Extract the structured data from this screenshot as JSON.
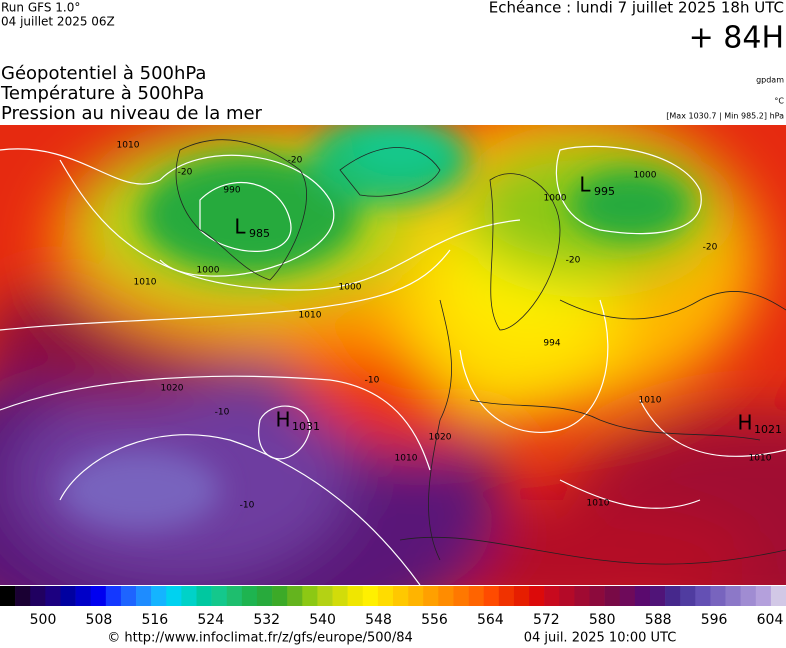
{
  "header": {
    "run": "Run GFS 1.0°",
    "run_date": "04 juillet 2025 06Z",
    "valid": "Echéance : lundi 7 juillet 2025 18h UTC",
    "lead": "+ 84H",
    "titles": [
      "Géopotentiel à 500hPa",
      "Température à 500hPa",
      "Pression au niveau de la mer"
    ],
    "units": [
      "gpdam",
      "°C",
      "[Max 1030.7 | Min 985.2] hPa"
    ]
  },
  "map": {
    "centers": [
      {
        "letter": "L",
        "value": "985"
      },
      {
        "letter": "L",
        "value": "995"
      },
      {
        "letter": "H",
        "value": "1031"
      },
      {
        "letter": "H",
        "value": "1021"
      }
    ],
    "isobar_labels": [
      "1010",
      "990",
      "1000",
      "1010",
      "1000",
      "1010",
      "1020",
      "1020",
      "1010",
      "1010",
      "1000",
      "1000",
      "994",
      "1010",
      "1010"
    ],
    "temp_labels": [
      "-20",
      "-20",
      "-20",
      "-10",
      "-10",
      "-10",
      "-20"
    ]
  },
  "colorbar": {
    "colors": [
      "#000000",
      "#1a0033",
      "#200060",
      "#1c0080",
      "#0000a0",
      "#0000c8",
      "#0000f0",
      "#1438ff",
      "#1e64ff",
      "#1e8cff",
      "#14b4ff",
      "#00d2f0",
      "#00d2c8",
      "#00c8a0",
      "#14c88c",
      "#1ebe6e",
      "#1eb450",
      "#28aa3c",
      "#3caa28",
      "#64b41e",
      "#8cc814",
      "#b4d214",
      "#d2dc0a",
      "#f0e600",
      "#fff000",
      "#ffdc00",
      "#ffc800",
      "#ffb400",
      "#ffa000",
      "#ff8c00",
      "#ff7800",
      "#ff6400",
      "#ff4b00",
      "#f03200",
      "#e61e00",
      "#dc0a0a",
      "#c80a1e",
      "#b40a28",
      "#a00a32",
      "#8c0a3c",
      "#780a46",
      "#6e0a5a",
      "#5a0a6e",
      "#501478",
      "#46288c",
      "#503ca0",
      "#6450b4",
      "#7864be",
      "#8c78c8",
      "#a08cd2",
      "#b4a0dc",
      "#d2c8e6"
    ],
    "ticks": [
      500,
      508,
      516,
      524,
      532,
      540,
      548,
      556,
      564,
      572,
      580,
      588,
      596,
      604
    ]
  },
  "footer": {
    "url": "© http://www.infoclimat.fr/z/gfs/europe/500/84",
    "date": "04 juil. 2025 10:00 UTC"
  }
}
